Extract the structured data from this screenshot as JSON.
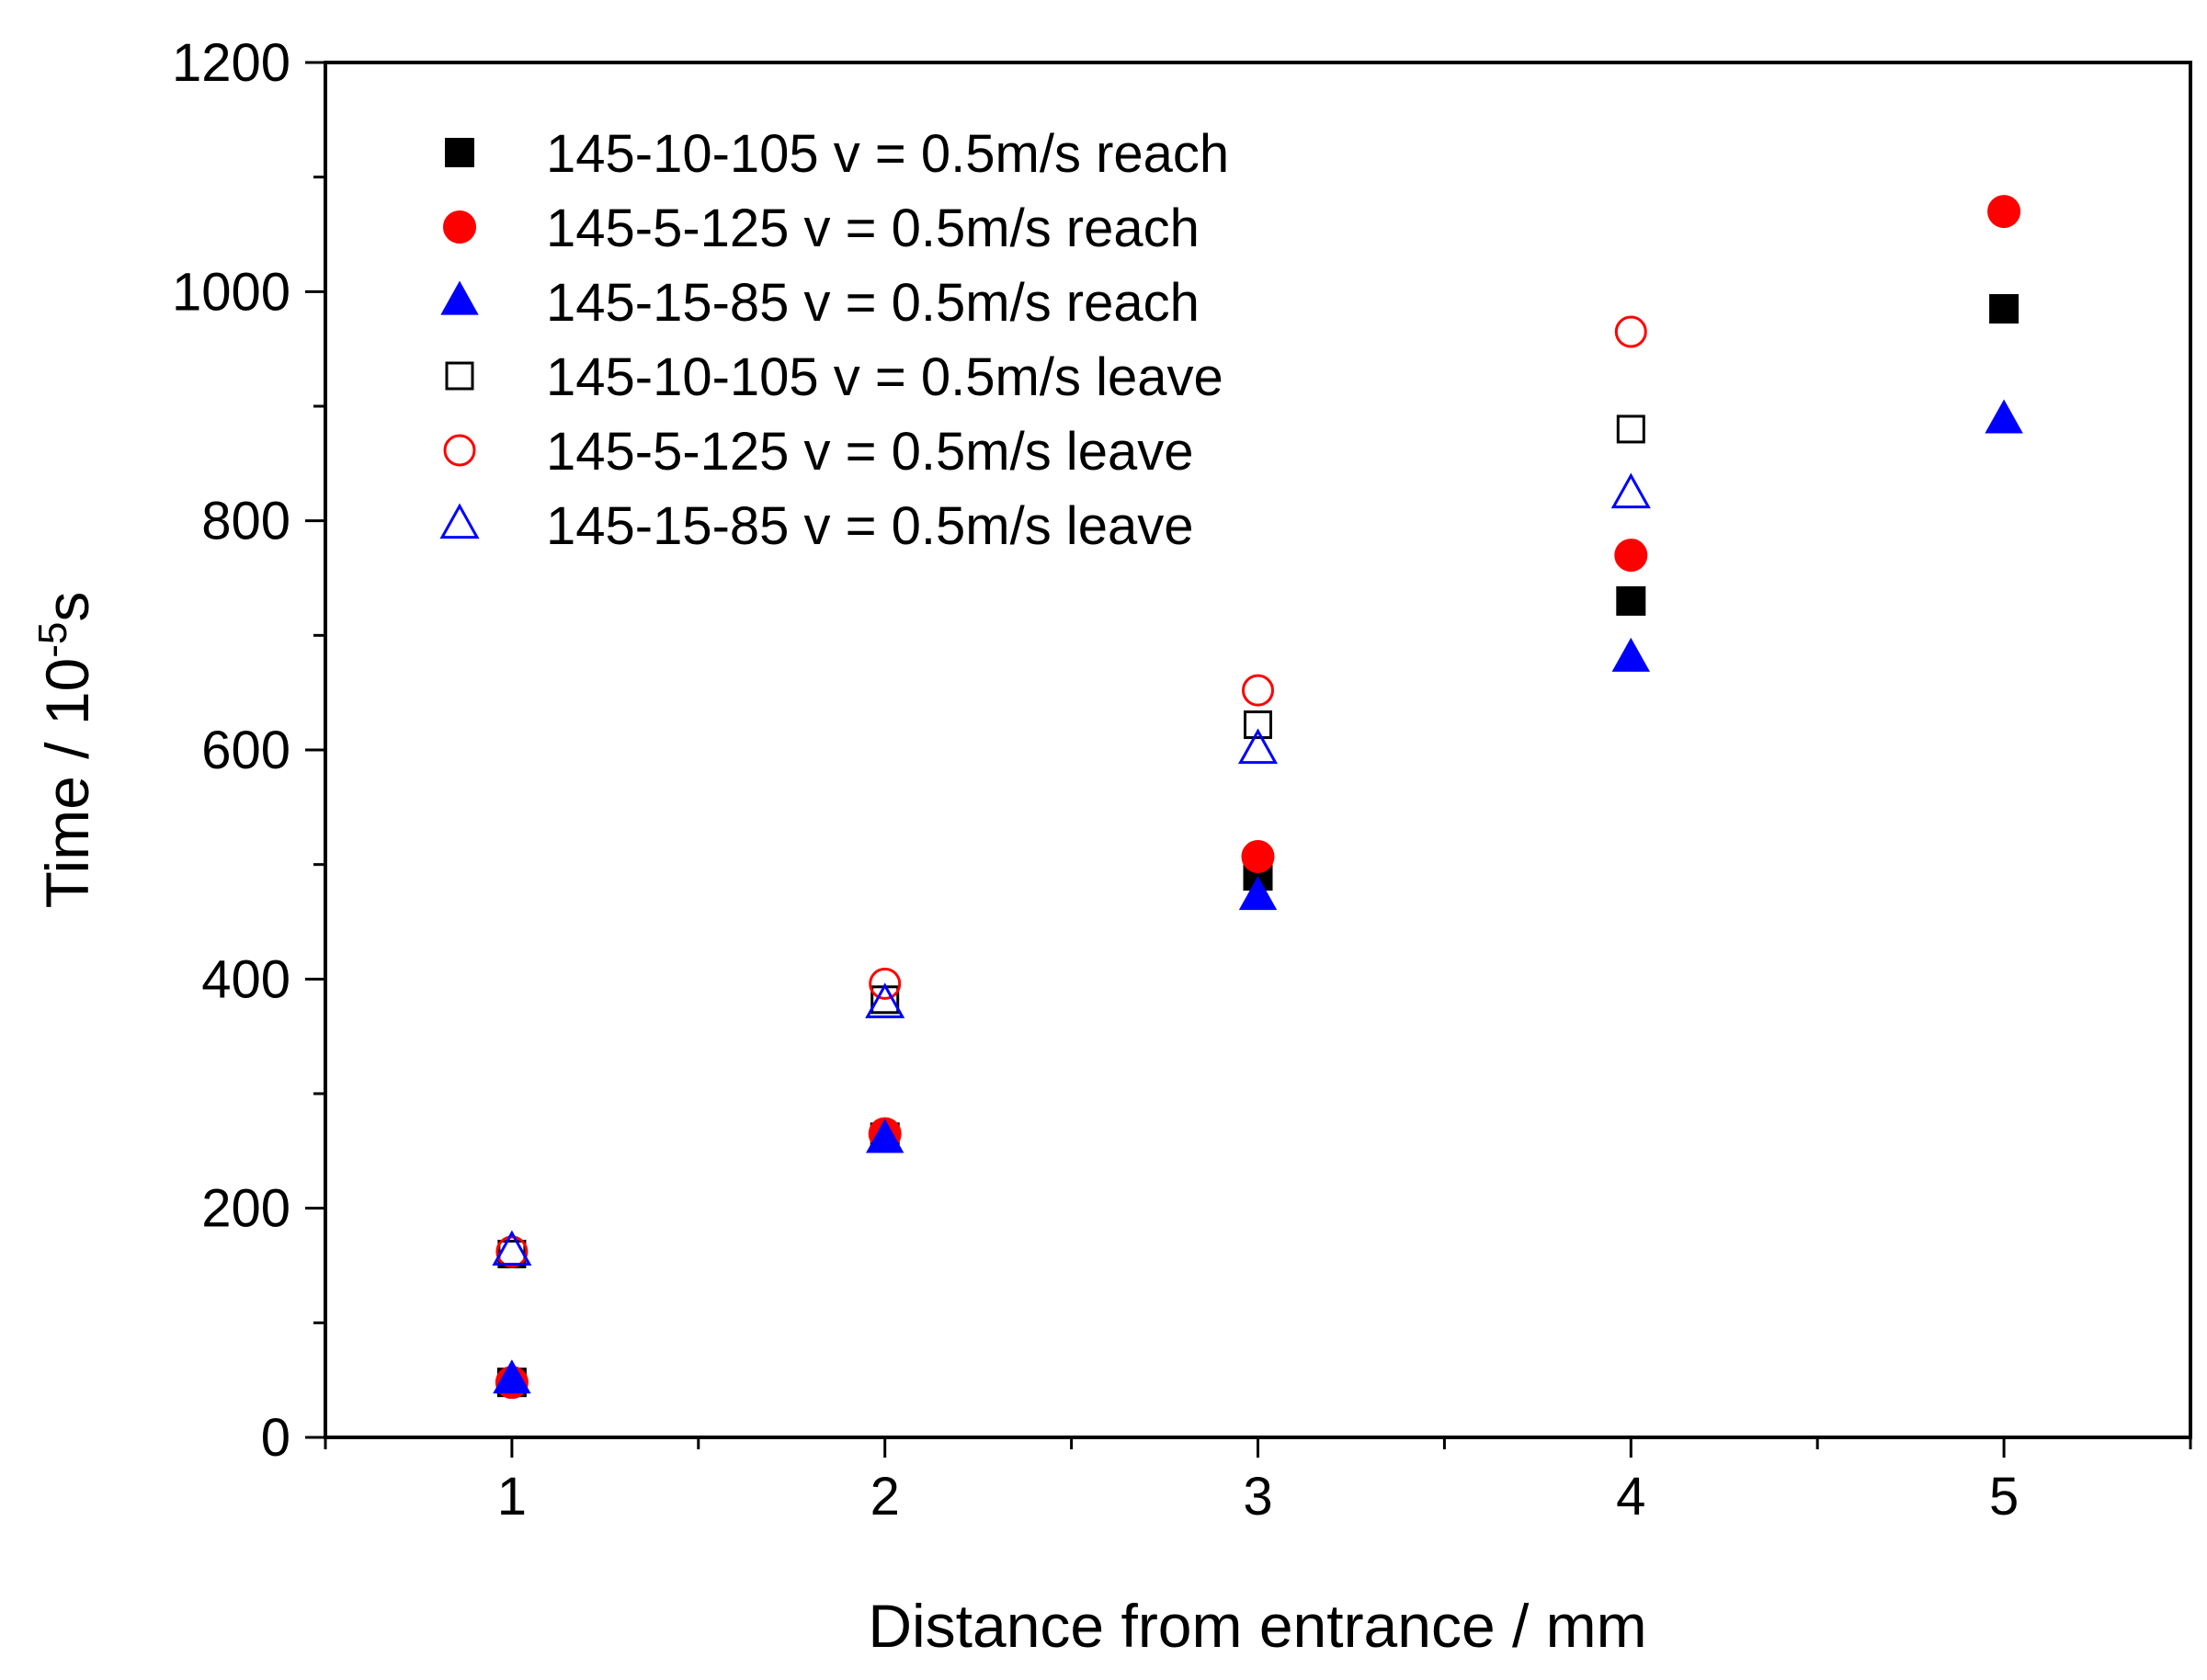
{
  "chart_data": {
    "type": "scatter",
    "title": "",
    "xlabel": "Distance from entrance / mm",
    "ylabel": "Time / 10",
    "ylabel_superscript": "-5",
    "ylabel_suffix": "s",
    "xlim": [
      0.5,
      5.5
    ],
    "ylim": [
      0,
      1200
    ],
    "x_ticks": [
      1,
      2,
      3,
      4,
      5
    ],
    "y_ticks": [
      0,
      200,
      400,
      600,
      800,
      1000,
      1200
    ],
    "grid": false,
    "legend_position": "top-left",
    "series": [
      {
        "name": "145-10-105 v = 0.5m/s reach",
        "marker": "square",
        "filled": true,
        "color": "#000000",
        "x": [
          1,
          2,
          3,
          4,
          5
        ],
        "y": [
          48,
          262,
          490,
          730,
          985
        ]
      },
      {
        "name": "145-5-125 v = 0.5m/s reach",
        "marker": "circle",
        "filled": true,
        "color": "#ff0000",
        "x": [
          1,
          2,
          3,
          4,
          5
        ],
        "y": [
          48,
          265,
          507,
          770,
          1070
        ]
      },
      {
        "name": "145-15-85 v = 0.5m/s reach",
        "marker": "triangle",
        "filled": true,
        "color": "#0000ff",
        "x": [
          1,
          2,
          3,
          4,
          5
        ],
        "y": [
          50,
          260,
          472,
          680,
          888
        ]
      },
      {
        "name": "145-10-105 v = 0.5m/s leave",
        "marker": "square",
        "filled": false,
        "color": "#000000",
        "x": [
          1,
          2,
          3,
          4
        ],
        "y": [
          160,
          382,
          622,
          880
        ]
      },
      {
        "name": "145-5-125 v = 0.5m/s leave",
        "marker": "circle",
        "filled": false,
        "color": "#ff0000",
        "x": [
          1,
          2,
          3,
          4
        ],
        "y": [
          162,
          396,
          652,
          965
        ]
      },
      {
        "name": "145-15-85 v = 0.5m/s leave",
        "marker": "triangle",
        "filled": false,
        "color": "#0000ff",
        "x": [
          1,
          2,
          3,
          4
        ],
        "y": [
          162,
          378,
          600,
          823
        ]
      }
    ]
  }
}
